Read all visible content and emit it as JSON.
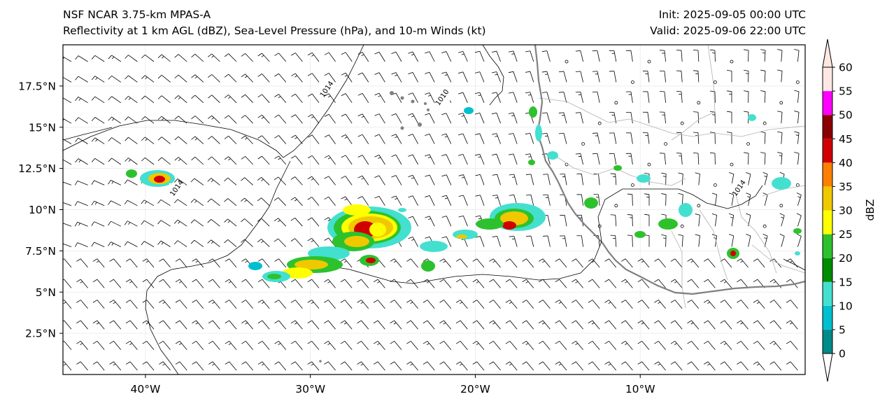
{
  "header": {
    "model_title": "NSF NCAR 3.75-km MPAS-A",
    "fields_title": "Reflectivity at 1 km AGL (dBZ), Sea-Level Pressure (hPa), and 10-m Winds (kt)",
    "init": "Init: 2025-09-05 00:00 UTC",
    "valid": "Valid: 2025-09-06 22:00 UTC"
  },
  "map": {
    "lon_range": [
      -45,
      0
    ],
    "lat_range": [
      0,
      20
    ],
    "lon_ticks": [
      {
        "value": -40,
        "label": "40°W"
      },
      {
        "value": -30,
        "label": "30°W"
      },
      {
        "value": -20,
        "label": "20°W"
      },
      {
        "value": -10,
        "label": "10°W"
      }
    ],
    "lat_ticks": [
      {
        "value": 2.5,
        "label": "2.5°N"
      },
      {
        "value": 5,
        "label": "5°N"
      },
      {
        "value": 7.5,
        "label": "7.5°N"
      },
      {
        "value": 10,
        "label": "10°N"
      },
      {
        "value": 12.5,
        "label": "12.5°N"
      },
      {
        "value": 15,
        "label": "15°N"
      },
      {
        "value": 17.5,
        "label": "17.5°N"
      }
    ],
    "pressure_labels": [
      {
        "text": "1014",
        "lon": -29,
        "lat": 17.3
      },
      {
        "text": "1010",
        "lon": -22,
        "lat": 16.8
      },
      {
        "text": "1014",
        "lon": -38.1,
        "lat": 11.3
      },
      {
        "text": "1014",
        "lon": -4,
        "lat": 11.3
      }
    ]
  },
  "colorbar": {
    "label": "dBZ",
    "levels": [
      0,
      5,
      10,
      15,
      20,
      25,
      30,
      35,
      40,
      45,
      50,
      55,
      60
    ],
    "colors": [
      "#ffffff",
      "#008a8a",
      "#00bfcf",
      "#43e0d0",
      "#008c00",
      "#2dc22d",
      "#ffff00",
      "#f0c800",
      "#ff8000",
      "#d00000",
      "#8b0000",
      "#ff00ff",
      "#ffe8e4"
    ],
    "tick_labels": [
      "0",
      "5",
      "10",
      "15",
      "20",
      "25",
      "30",
      "35",
      "40",
      "45",
      "50",
      "55",
      "60"
    ]
  }
}
